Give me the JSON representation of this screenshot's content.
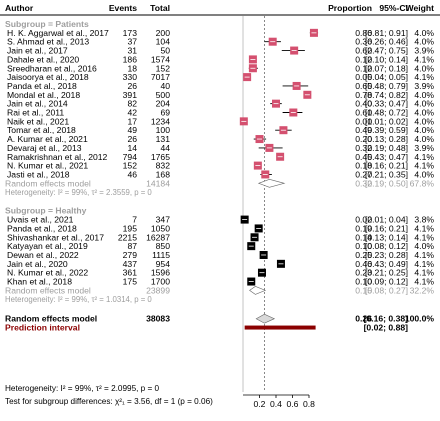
{
  "chart_data": {
    "type": "forest",
    "headers": {
      "study": "Author",
      "events": "Events",
      "total": "Total",
      "proportion": "Proportion",
      "ci": "95%-CI",
      "weight": "Weight"
    },
    "x_ticks": [
      "0.2",
      "0.4",
      "0.6",
      "0.8"
    ],
    "xlim": [
      0,
      0.9
    ],
    "reference_line": 0.26,
    "colors": {
      "patients_box": "#d4506f",
      "healthy_box": "#000000",
      "subgroup_text": "#9e9e9e",
      "overall_diamond": "#d9d9d9",
      "prediction_bar": "#8b0000"
    },
    "subgroups": [
      {
        "label": "Subgroup = Patients",
        "marker_color": "#d4506f",
        "studies": [
          {
            "study": "H. K. Aggarwal et al., 2017",
            "events": "173",
            "total": "200",
            "est": 0.86,
            "lo": 0.81,
            "hi": 0.91,
            "ci": "[0.81; 0.91]",
            "weight": "4.0%",
            "prop": "0.86"
          },
          {
            "study": "S. Ahmad et al., 2013",
            "events": "37",
            "total": "104",
            "est": 0.36,
            "lo": 0.26,
            "hi": 0.46,
            "ci": "[0.26; 0.46]",
            "weight": "4.0%",
            "prop": "0.36"
          },
          {
            "study": "Jain et al., 2017",
            "events": "31",
            "total": "50",
            "est": 0.62,
            "lo": 0.47,
            "hi": 0.75,
            "ci": "[0.47; 0.75]",
            "weight": "3.9%",
            "prop": "0.62"
          },
          {
            "study": "Dahale et al., 2020",
            "events": "186",
            "total": "1574",
            "est": 0.12,
            "lo": 0.1,
            "hi": 0.14,
            "ci": "[0.10; 0.14]",
            "weight": "4.1%",
            "prop": "0.12"
          },
          {
            "study": "Sreedharan et al., 2016",
            "events": "18",
            "total": "152",
            "est": 0.12,
            "lo": 0.07,
            "hi": 0.18,
            "ci": "[0.07; 0.18]",
            "weight": "4.0%",
            "prop": "0.12"
          },
          {
            "study": "Jaisoorya et al., 2018",
            "events": "330",
            "total": "7017",
            "est": 0.05,
            "lo": 0.04,
            "hi": 0.05,
            "ci": "[0.04; 0.05]",
            "weight": "4.1%",
            "prop": "0.05"
          },
          {
            "study": "Panda et al., 2018",
            "events": "26",
            "total": "40",
            "est": 0.65,
            "lo": 0.48,
            "hi": 0.79,
            "ci": "[0.48; 0.79]",
            "weight": "3.9%",
            "prop": "0.65"
          },
          {
            "study": "Mondal et al., 2018",
            "events": "391",
            "total": "500",
            "est": 0.78,
            "lo": 0.74,
            "hi": 0.82,
            "ci": "[0.74; 0.82]",
            "weight": "4.0%",
            "prop": "0.78"
          },
          {
            "study": "Jain et al., 2014",
            "events": "82",
            "total": "204",
            "est": 0.4,
            "lo": 0.33,
            "hi": 0.47,
            "ci": "[0.33; 0.47]",
            "weight": "4.0%",
            "prop": "0.40"
          },
          {
            "study": "Rai et al., 2011",
            "events": "42",
            "total": "69",
            "est": 0.61,
            "lo": 0.48,
            "hi": 0.72,
            "ci": "[0.48; 0.72]",
            "weight": "4.0%",
            "prop": "0.61"
          },
          {
            "study": "Naik et al., 2021",
            "events": "17",
            "total": "1234",
            "est": 0.01,
            "lo": 0.01,
            "hi": 0.02,
            "ci": "[0.01; 0.02]",
            "weight": "4.0%",
            "prop": "0.01"
          },
          {
            "study": "Tomar et al., 2018",
            "events": "49",
            "total": "100",
            "est": 0.49,
            "lo": 0.39,
            "hi": 0.59,
            "ci": "[0.39; 0.59]",
            "weight": "4.0%",
            "prop": "0.49"
          },
          {
            "study": "A. Kumar et al., 2021",
            "events": "26",
            "total": "131",
            "est": 0.2,
            "lo": 0.13,
            "hi": 0.28,
            "ci": "[0.13; 0.28]",
            "weight": "4.0%",
            "prop": "0.20"
          },
          {
            "study": "Devaraj et al., 2013",
            "events": "14",
            "total": "44",
            "est": 0.32,
            "lo": 0.19,
            "hi": 0.48,
            "ci": "[0.19; 0.48]",
            "weight": "3.9%",
            "prop": "0.32"
          },
          {
            "study": "Ramakrishnan et al., 2012",
            "events": "794",
            "total": "1765",
            "est": 0.45,
            "lo": 0.43,
            "hi": 0.47,
            "ci": "[0.43; 0.47]",
            "weight": "4.1%",
            "prop": "0.45"
          },
          {
            "study": "N. Kumar et al., 2021",
            "events": "152",
            "total": "832",
            "est": 0.18,
            "lo": 0.16,
            "hi": 0.21,
            "ci": "[0.16; 0.21]",
            "weight": "4.1%",
            "prop": "0.18"
          },
          {
            "study": "Jasti et al., 2018",
            "events": "46",
            "total": "168",
            "est": 0.27,
            "lo": 0.21,
            "hi": 0.35,
            "ci": "[0.21; 0.35]",
            "weight": "4.0%",
            "prop": "0.27"
          }
        ],
        "summary": {
          "label": "Random effects model",
          "total": "14184",
          "est": 0.32,
          "lo": 0.19,
          "hi": 0.5,
          "prop": "0.32",
          "ci": "[0.19; 0.50]",
          "weight": "67.8%"
        },
        "heterogeneity": "Heterogeneity: I² = 99%, τ² = 2.3559, p = 0"
      },
      {
        "label": "Subgroup = Healthy",
        "marker_color": "#000000",
        "studies": [
          {
            "study": "Uvais et al., 2021",
            "events": "7",
            "total": "347",
            "est": 0.02,
            "lo": 0.01,
            "hi": 0.04,
            "ci": "[0.01; 0.04]",
            "weight": "3.8%",
            "prop": "0.02"
          },
          {
            "study": "Panda et al., 2018",
            "events": "195",
            "total": "1050",
            "est": 0.19,
            "lo": 0.16,
            "hi": 0.21,
            "ci": "[0.16; 0.21]",
            "weight": "4.1%",
            "prop": "0.19"
          },
          {
            "study": "Shivashankar et al., 2017",
            "events": "2215",
            "total": "16287",
            "est": 0.14,
            "lo": 0.13,
            "hi": 0.14,
            "ci": "[0.13; 0.14]",
            "weight": "4.1%",
            "prop": "0.14"
          },
          {
            "study": "Katyayan et al., 2019",
            "events": "87",
            "total": "850",
            "est": 0.1,
            "lo": 0.08,
            "hi": 0.12,
            "ci": "[0.08; 0.12]",
            "weight": "4.0%",
            "prop": "0.10"
          },
          {
            "study": "Dewan et al., 2022",
            "events": "279",
            "total": "1115",
            "est": 0.25,
            "lo": 0.23,
            "hi": 0.28,
            "ci": "[0.23; 0.28]",
            "weight": "4.1%",
            "prop": "0.25"
          },
          {
            "study": "Jain et al., 2020",
            "events": "437",
            "total": "954",
            "est": 0.46,
            "lo": 0.43,
            "hi": 0.49,
            "ci": "[0.43; 0.49]",
            "weight": "4.1%",
            "prop": "0.46"
          },
          {
            "study": "N. Kumar et al., 2022",
            "events": "361",
            "total": "1596",
            "est": 0.23,
            "lo": 0.21,
            "hi": 0.25,
            "ci": "[0.21; 0.25]",
            "weight": "4.1%",
            "prop": "0.23"
          },
          {
            "study": "Khan et al., 2018",
            "events": "175",
            "total": "1700",
            "est": 0.1,
            "lo": 0.09,
            "hi": 0.12,
            "ci": "[0.09; 0.12]",
            "weight": "4.1%",
            "prop": "0.10"
          }
        ],
        "summary": {
          "label": "Random effects model",
          "total": "23899",
          "est": 0.15,
          "lo": 0.08,
          "hi": 0.27,
          "prop": "0.15",
          "ci": "[0.08; 0.27]",
          "weight": "32.2%"
        },
        "heterogeneity": "Heterogeneity: I² = 99%, τ² = 1.0314, p = 0"
      }
    ],
    "overall": {
      "label": "Random effects model",
      "total": "38083",
      "est": 0.26,
      "lo": 0.16,
      "hi": 0.38,
      "prop": "0.26",
      "ci": "[0.16; 0.38]",
      "weight": "100.0%"
    },
    "prediction": {
      "label": "Prediction interval",
      "lo": 0.02,
      "hi": 0.88,
      "ci": "[0.02; 0.88]"
    },
    "heterogeneity_overall": "Heterogeneity: I² = 99%, τ² = 2.0995, p = 0",
    "subgroup_test": "Test for subgroup differences: χ²₁ = 3.56, df = 1 (p = 0.06)"
  }
}
